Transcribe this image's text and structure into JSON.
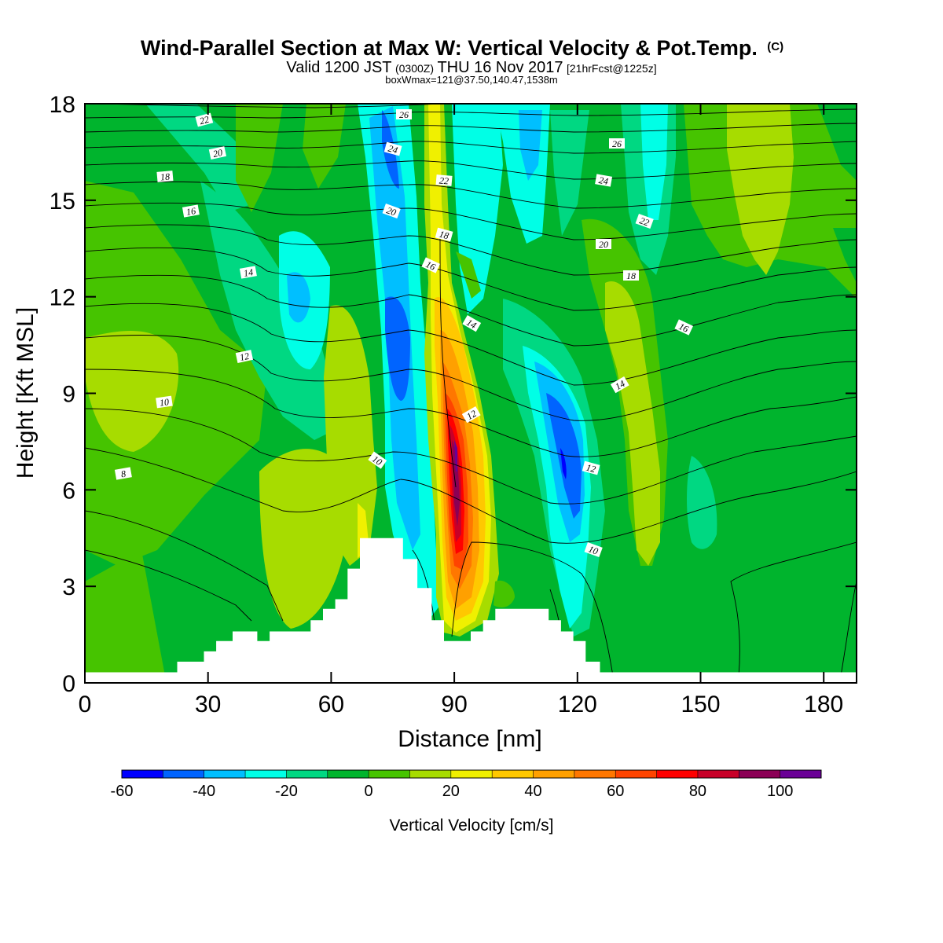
{
  "title": {
    "main": "Wind-Parallel Section at Max W: Vertical Velocity & Pot.Temp.",
    "main_suffix": "(C)",
    "line2_pre": "Valid 1200 JST",
    "line2_z": "(0300Z)",
    "line2_date": "THU 16 Nov 2017",
    "line2_fcst": "[21hrFcst@1225z]",
    "line3": "boxWmax=121@37.50,140.47,1538m"
  },
  "chart_data": {
    "type": "heatmap",
    "xlabel": "Distance [nm]",
    "ylabel": "Height [Kft MSL]",
    "xlim": [
      0,
      188
    ],
    "ylim": [
      0,
      18
    ],
    "x_ticks": [
      "0",
      "30",
      "60",
      "90",
      "120",
      "150",
      "180"
    ],
    "y_ticks": [
      "0",
      "3",
      "6",
      "9",
      "12",
      "15",
      "18"
    ],
    "colorbar": {
      "label": "Vertical Velocity [cm/s]",
      "range": [
        -60,
        110
      ],
      "step": 10,
      "tick_labels": [
        "-60",
        "-40",
        "-20",
        "0",
        "20",
        "40",
        "60",
        "80",
        "100"
      ],
      "colors": [
        "#0000ff",
        "#0064ff",
        "#00bfff",
        "#00ffe6",
        "#00d882",
        "#00b42d",
        "#46c400",
        "#a7dc00",
        "#f0f000",
        "#ffc800",
        "#ffa000",
        "#ff7700",
        "#ff4400",
        "#ff0000",
        "#c80028",
        "#8b0055",
        "#6a0096"
      ]
    },
    "contour_variable": "Potential temperature [C]",
    "contour_labels": [
      "8",
      "10",
      "12",
      "14",
      "16",
      "18",
      "20",
      "22",
      "24",
      "26",
      "10",
      "12",
      "14",
      "16",
      "18",
      "20",
      "22",
      "24",
      "26",
      "12",
      "14",
      "16",
      "18",
      "20",
      "22",
      "24",
      "26"
    ],
    "terrain_kft": [
      [
        0,
        0.33
      ],
      [
        22.5,
        0.33
      ],
      [
        22.5,
        0.66
      ],
      [
        29,
        0.66
      ],
      [
        29,
        0.98
      ],
      [
        32,
        0.98
      ],
      [
        32,
        1.3
      ],
      [
        36,
        1.3
      ],
      [
        36,
        1.6
      ],
      [
        42,
        1.6
      ],
      [
        42,
        1.3
      ],
      [
        45,
        1.3
      ],
      [
        45,
        1.6
      ],
      [
        55,
        1.6
      ],
      [
        55,
        1.95
      ],
      [
        58,
        1.95
      ],
      [
        58,
        2.3
      ],
      [
        61,
        2.3
      ],
      [
        61,
        2.6
      ],
      [
        64,
        2.6
      ],
      [
        64,
        3.55
      ],
      [
        67,
        3.55
      ],
      [
        67,
        4.5
      ],
      [
        77.5,
        4.5
      ],
      [
        77.5,
        3.85
      ],
      [
        81,
        3.85
      ],
      [
        81,
        2.95
      ],
      [
        84.5,
        2.95
      ],
      [
        84.5,
        1.95
      ],
      [
        87.5,
        1.95
      ],
      [
        87.5,
        1.3
      ],
      [
        94,
        1.3
      ],
      [
        94,
        1.6
      ],
      [
        97,
        1.6
      ],
      [
        97,
        1.95
      ],
      [
        100,
        1.95
      ],
      [
        100,
        2.3
      ],
      [
        113,
        2.3
      ],
      [
        113,
        1.95
      ],
      [
        116,
        1.95
      ],
      [
        116,
        1.6
      ],
      [
        119,
        1.6
      ],
      [
        119,
        1.3
      ],
      [
        122,
        1.3
      ],
      [
        122,
        0.66
      ],
      [
        125.5,
        0.66
      ],
      [
        125.5,
        0.33
      ],
      [
        188,
        0.33
      ]
    ]
  }
}
